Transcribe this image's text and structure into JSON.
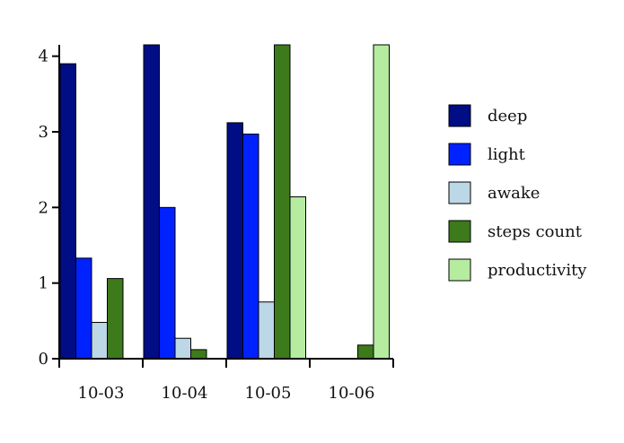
{
  "chart_data": {
    "type": "bar",
    "categories": [
      "10-03",
      "10-04",
      "10-05",
      "10-06"
    ],
    "series": [
      {
        "name": "deep",
        "color": "#000d85",
        "values": [
          3.9,
          4.15,
          3.12,
          0
        ]
      },
      {
        "name": "light",
        "color": "#0022ff",
        "values": [
          1.33,
          2.0,
          2.97,
          0
        ]
      },
      {
        "name": "awake",
        "color": "#bcd7e6",
        "values": [
          0.48,
          0.27,
          0.75,
          0
        ]
      },
      {
        "name": "steps count",
        "color": "#3d7a1b",
        "values": [
          1.06,
          0.12,
          4.15,
          0.18
        ]
      },
      {
        "name": "productivity",
        "color": "#b5eca0",
        "values": [
          0,
          0,
          2.14,
          4.15
        ]
      }
    ],
    "yticks": [
      0,
      1,
      2,
      3,
      4
    ],
    "ylim": [
      0,
      4.15
    ],
    "grid": false,
    "legend": "right"
  }
}
